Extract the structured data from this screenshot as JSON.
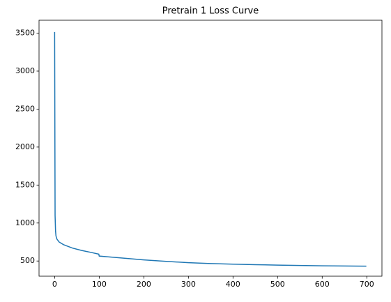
{
  "chart_data": {
    "type": "line",
    "title": "Pretrain 1 Loss Curve",
    "x": [
      0,
      1,
      2,
      3,
      5,
      10,
      20,
      40,
      60,
      80,
      99,
      100,
      120,
      150,
      200,
      250,
      300,
      350,
      400,
      450,
      500,
      550,
      600,
      650,
      699
    ],
    "series": [
      {
        "color": "#1f77b4",
        "values": [
          3515,
          1100,
          900,
          830,
          790,
          750,
          715,
          670,
          640,
          615,
          590,
          565,
          555,
          540,
          515,
          495,
          478,
          467,
          458,
          452,
          446,
          441,
          437,
          434,
          432
        ]
      }
    ],
    "xlim": [
      -35,
      734
    ],
    "ylim": [
      300,
      3670
    ],
    "xticks": [
      0,
      100,
      200,
      300,
      400,
      500,
      600,
      700
    ],
    "yticks": [
      500,
      1000,
      1500,
      2000,
      2500,
      3000,
      3500
    ],
    "grid": false
  }
}
